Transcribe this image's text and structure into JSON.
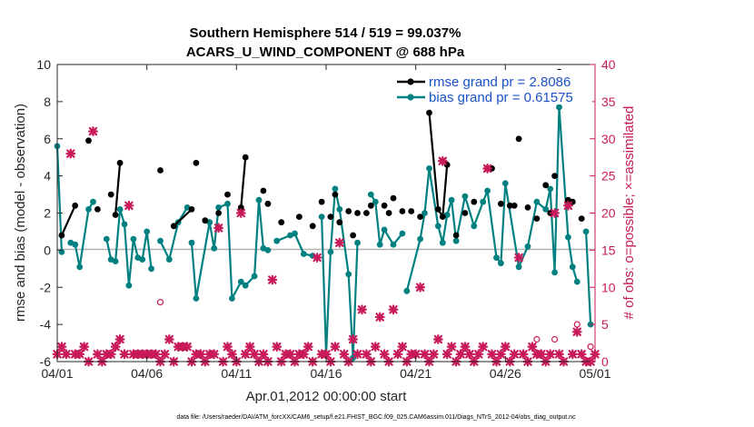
{
  "chart_data": {
    "type": "line",
    "title_line1": "Southern Hemisphere 514 / 519 = 99.037%",
    "title_line2": "ACARS_U_WIND_COMPONENT @ 688 hPa",
    "xlabel": "Apr.01,2012 00:00:00 start",
    "ylabel_left": "rmse and bias (model - observation)",
    "ylabel_right": "# of obs: o=possible; ×=assimilated",
    "footnote": "data file: /Users/raeder/DAI/ATM_forcXX/CAM6_setup/f.e21.FHIST_BGC.f09_025.CAM6assim.011/Diags_NTrS_2012-04/obs_diag_output.nc",
    "xlim": [
      0,
      30
    ],
    "ylim_left": [
      -6,
      10
    ],
    "ylim_right": [
      0,
      40
    ],
    "x_ticks": [
      0,
      5,
      10,
      15,
      20,
      25,
      30
    ],
    "x_tick_labels": [
      "04/01",
      "04/06",
      "04/11",
      "04/16",
      "04/21",
      "04/26",
      "05/01"
    ],
    "y_ticks_left": [
      "-6",
      "-4",
      "-2",
      "0",
      "2",
      "4",
      "6",
      "8",
      "10"
    ],
    "y_ticks_right": [
      "0",
      "5",
      "10",
      "15",
      "20",
      "25",
      "30",
      "35",
      "40"
    ],
    "grid": false,
    "legend_position": "top-right",
    "legend": {
      "rmse": "rmse grand pr = 2.8086",
      "bias": "bias grand pr = 0.61575"
    },
    "colors": {
      "rmse": "#000000",
      "bias": "#008080",
      "obs": "#c81a5a",
      "zero_line": "#b3b3b3"
    },
    "series": [
      {
        "name": "rmse grand pr = 2.8086",
        "key": "rmse",
        "points": [
          [
            0.25,
            0.8
          ],
          [
            1,
            2.4
          ],
          [
            1.75,
            5.9
          ],
          [
            2.25,
            2.2
          ],
          [
            3,
            3.0
          ],
          [
            3.25,
            1.9
          ],
          [
            3.5,
            4.7
          ],
          [
            5.75,
            4.3
          ],
          [
            6.5,
            1.3
          ],
          [
            7.5,
            2.2
          ],
          [
            7.75,
            4.7
          ],
          [
            8.25,
            1.6
          ],
          [
            9,
            2.0
          ],
          [
            9.5,
            3.0
          ],
          [
            10.25,
            2.3
          ],
          [
            10.5,
            5.0
          ],
          [
            11.5,
            3.2
          ],
          [
            11.75,
            2.5
          ],
          [
            12.5,
            1.5
          ],
          [
            13.5,
            1.8
          ],
          [
            14.25,
            1.3
          ],
          [
            14.75,
            2.6
          ],
          [
            15.25,
            1.8
          ],
          [
            15.5,
            3.0
          ],
          [
            15.75,
            1.5
          ],
          [
            16.25,
            2.1
          ],
          [
            16.5,
            0.8
          ],
          [
            16.75,
            2.0
          ],
          [
            17.25,
            2.0
          ],
          [
            17.5,
            2.4
          ],
          [
            18.25,
            2.4
          ],
          [
            18.5,
            2.0
          ],
          [
            18.75,
            2.8
          ],
          [
            19.25,
            2.1
          ],
          [
            19.75,
            2.1
          ],
          [
            20.25,
            1.8
          ],
          [
            20.75,
            7.4
          ],
          [
            21.25,
            2.2
          ],
          [
            21.5,
            1.8
          ],
          [
            21.75,
            4.6
          ],
          [
            22.25,
            0.8
          ],
          [
            22.75,
            2.0
          ],
          [
            23.25,
            2.6
          ],
          [
            24.25,
            4.4
          ],
          [
            24.75,
            2.5
          ],
          [
            25.25,
            2.4
          ],
          [
            25.5,
            2.4
          ],
          [
            25.75,
            6.0
          ],
          [
            26.25,
            2.3
          ],
          [
            26.75,
            1.7
          ],
          [
            27.25,
            3.5
          ],
          [
            27.5,
            2.0
          ],
          [
            27.75,
            4.0
          ],
          [
            28,
            9.6
          ],
          [
            28.5,
            2.7
          ],
          [
            28.75,
            2.6
          ],
          [
            29.25,
            1.7
          ]
        ],
        "segments": [
          [
            0,
            1
          ],
          [
            5,
            6
          ],
          [
            8,
            9
          ],
          [
            14,
            15
          ],
          [
            36,
            37
          ],
          [
            37,
            39
          ]
        ]
      },
      {
        "name": "bias grand pr = 0.61575",
        "key": "bias",
        "points": [
          [
            0,
            5.6
          ],
          [
            0.25,
            -0.1
          ],
          [
            0.75,
            0.4
          ],
          [
            1,
            0.3
          ],
          [
            1.25,
            -0.9
          ],
          [
            1.75,
            2.2
          ],
          [
            2,
            2.6
          ],
          [
            2.75,
            0.6
          ],
          [
            3,
            -0.5
          ],
          [
            3.25,
            -0.6
          ],
          [
            3.5,
            2.2
          ],
          [
            3.75,
            1.4
          ],
          [
            4,
            -1.9
          ],
          [
            4.25,
            0.6
          ],
          [
            4.5,
            -0.4
          ],
          [
            4.75,
            -0.5
          ],
          [
            5,
            1.0
          ],
          [
            5.25,
            -1.0
          ],
          [
            5.75,
            0.5
          ],
          [
            6.25,
            -0.5
          ],
          [
            6.75,
            1.5
          ],
          [
            7.25,
            2.3
          ],
          [
            7.5,
            0.4
          ],
          [
            7.75,
            -2.6
          ],
          [
            8.5,
            1.5
          ],
          [
            8.75,
            0.1
          ],
          [
            9,
            2.3
          ],
          [
            9.5,
            2.5
          ],
          [
            9.75,
            -2.6
          ],
          [
            10.25,
            -1.7
          ],
          [
            10.5,
            -1.9
          ],
          [
            11,
            -1.4
          ],
          [
            11.25,
            2.7
          ],
          [
            11.5,
            0.1
          ],
          [
            11.75,
            0.0
          ],
          [
            12.25,
            0.5
          ],
          [
            13,
            0.8
          ],
          [
            13.25,
            0.9
          ],
          [
            13.75,
            -0.2
          ],
          [
            14.25,
            -0.3
          ],
          [
            14.75,
            1.8
          ],
          [
            15,
            -5.6
          ],
          [
            15.25,
            -0.1
          ],
          [
            15.5,
            3.3
          ],
          [
            15.75,
            2.2
          ],
          [
            16.25,
            -1.3
          ],
          [
            16.5,
            -5.8
          ],
          [
            16.75,
            0.4
          ],
          [
            17.5,
            3.0
          ],
          [
            17.75,
            2.6
          ],
          [
            18,
            0.3
          ],
          [
            18.25,
            1.1
          ],
          [
            18.75,
            0.3
          ],
          [
            19.25,
            0.9
          ],
          [
            19.5,
            -2.2
          ],
          [
            20.25,
            0.6
          ],
          [
            20.5,
            2.0
          ],
          [
            20.75,
            4.4
          ],
          [
            21.25,
            1.3
          ],
          [
            21.5,
            0.4
          ],
          [
            21.75,
            1.9
          ],
          [
            22,
            2.7
          ],
          [
            22.25,
            0.5
          ],
          [
            22.75,
            2.9
          ],
          [
            23.25,
            1.3
          ],
          [
            23.75,
            2.6
          ],
          [
            24,
            3.2
          ],
          [
            24.5,
            -0.4
          ],
          [
            24.75,
            -0.7
          ],
          [
            25,
            3.6
          ],
          [
            25.75,
            -0.9
          ],
          [
            26.25,
            0.2
          ],
          [
            26.75,
            2.6
          ],
          [
            27.25,
            2.2
          ],
          [
            27.5,
            3.3
          ],
          [
            27.75,
            -1.2
          ],
          [
            28,
            7.7
          ],
          [
            28.5,
            0.7
          ],
          [
            28.75,
            -0.9
          ],
          [
            29,
            -1.7
          ],
          [
            29.5,
            1.0
          ],
          [
            29.75,
            -4.0
          ]
        ],
        "segments": [
          [
            0,
            1
          ],
          [
            0,
            0
          ],
          [
            2,
            4
          ],
          [
            4,
            6
          ],
          [
            7,
            11
          ],
          [
            11,
            13
          ],
          [
            13,
            17
          ],
          [
            18,
            19
          ],
          [
            19,
            21
          ],
          [
            22,
            24
          ],
          [
            24,
            26
          ],
          [
            26,
            31
          ],
          [
            31,
            34
          ],
          [
            35,
            38
          ],
          [
            38,
            39
          ],
          [
            40,
            43
          ],
          [
            43,
            44
          ],
          [
            44,
            47
          ],
          [
            48,
            51
          ],
          [
            51,
            53
          ],
          [
            54,
            55
          ],
          [
            55,
            57
          ],
          [
            57,
            60
          ],
          [
            60,
            62
          ],
          [
            62,
            65
          ],
          [
            65,
            67
          ],
          [
            67,
            69
          ],
          [
            69,
            71
          ],
          [
            71,
            74
          ],
          [
            74,
            76
          ],
          [
            76,
            78
          ],
          [
            78,
            79
          ],
          [
            80,
            81
          ]
        ]
      },
      {
        "name": "obs assimilated",
        "key": "obs_assimilated",
        "y_axis": "right",
        "points": [
          [
            0,
            1
          ],
          [
            0.25,
            2
          ],
          [
            0.5,
            1
          ],
          [
            0.75,
            28
          ],
          [
            1,
            1
          ],
          [
            1.25,
            1
          ],
          [
            1.5,
            2
          ],
          [
            1.75,
            0
          ],
          [
            2,
            31
          ],
          [
            2.25,
            1
          ],
          [
            2.5,
            0
          ],
          [
            2.75,
            1
          ],
          [
            3,
            1
          ],
          [
            3.25,
            2
          ],
          [
            3.5,
            3
          ],
          [
            3.75,
            1
          ],
          [
            4,
            21
          ],
          [
            4.25,
            1
          ],
          [
            4.5,
            1
          ],
          [
            4.75,
            1
          ],
          [
            5,
            1
          ],
          [
            5.25,
            1
          ],
          [
            5.5,
            1
          ],
          [
            5.75,
            0
          ],
          [
            6,
            1
          ],
          [
            6.25,
            3
          ],
          [
            6.5,
            0
          ],
          [
            6.75,
            2
          ],
          [
            7,
            2
          ],
          [
            7.25,
            2
          ],
          [
            7.5,
            0
          ],
          [
            7.75,
            1
          ],
          [
            8,
            1
          ],
          [
            8.25,
            0
          ],
          [
            8.5,
            1
          ],
          [
            8.75,
            1
          ],
          [
            9,
            18
          ],
          [
            9.25,
            0
          ],
          [
            9.5,
            2
          ],
          [
            9.75,
            1
          ],
          [
            10,
            0
          ],
          [
            10.25,
            20
          ],
          [
            10.5,
            1
          ],
          [
            10.75,
            2
          ],
          [
            11,
            1
          ],
          [
            11.25,
            0
          ],
          [
            11.5,
            1
          ],
          [
            11.75,
            0
          ],
          [
            12,
            11
          ],
          [
            12.25,
            2
          ],
          [
            12.5,
            0
          ],
          [
            12.75,
            1
          ],
          [
            13,
            1
          ],
          [
            13.25,
            0
          ],
          [
            13.5,
            1
          ],
          [
            13.75,
            1
          ],
          [
            14,
            2
          ],
          [
            14.25,
            0
          ],
          [
            14.5,
            14
          ],
          [
            14.75,
            1
          ],
          [
            15,
            1
          ],
          [
            15.25,
            0
          ],
          [
            15.5,
            2
          ],
          [
            15.75,
            16
          ],
          [
            16,
            1
          ],
          [
            16.25,
            0
          ],
          [
            16.5,
            3
          ],
          [
            16.75,
            1
          ],
          [
            17,
            7
          ],
          [
            17.25,
            1
          ],
          [
            17.5,
            0
          ],
          [
            17.75,
            2
          ],
          [
            18,
            6
          ],
          [
            18.25,
            1
          ],
          [
            18.5,
            0
          ],
          [
            18.75,
            7
          ],
          [
            19,
            1
          ],
          [
            19.25,
            2
          ],
          [
            19.5,
            0
          ],
          [
            19.75,
            1
          ],
          [
            20,
            1
          ],
          [
            20.25,
            10
          ],
          [
            20.5,
            1
          ],
          [
            20.75,
            0
          ],
          [
            21,
            1
          ],
          [
            21.25,
            3
          ],
          [
            21.5,
            27
          ],
          [
            21.75,
            1
          ],
          [
            22,
            2
          ],
          [
            22.25,
            0
          ],
          [
            22.5,
            1
          ],
          [
            22.75,
            2
          ],
          [
            23,
            1
          ],
          [
            23.25,
            0
          ],
          [
            23.5,
            1
          ],
          [
            23.75,
            2
          ],
          [
            24,
            26
          ],
          [
            24.25,
            1
          ],
          [
            24.5,
            0
          ],
          [
            24.75,
            1
          ],
          [
            25,
            2
          ],
          [
            25.25,
            0
          ],
          [
            25.5,
            1
          ],
          [
            25.75,
            14
          ],
          [
            26,
            1
          ],
          [
            26.25,
            0
          ],
          [
            26.5,
            2
          ],
          [
            26.75,
            1
          ],
          [
            27,
            1
          ],
          [
            27.25,
            0
          ],
          [
            27.5,
            1
          ],
          [
            27.75,
            20
          ],
          [
            28,
            1
          ],
          [
            28.25,
            0
          ],
          [
            28.5,
            21
          ],
          [
            28.75,
            1
          ],
          [
            29,
            4
          ],
          [
            29.25,
            1
          ],
          [
            29.5,
            0
          ],
          [
            29.75,
            0
          ],
          [
            30,
            1
          ]
        ]
      },
      {
        "name": "obs possible",
        "key": "obs_possible",
        "y_axis": "right",
        "points": [
          [
            5.75,
            8
          ],
          [
            9,
            18
          ],
          [
            21.5,
            27
          ],
          [
            24,
            26
          ],
          [
            26.75,
            3
          ],
          [
            27.75,
            3
          ],
          [
            29,
            5
          ],
          [
            29.75,
            2
          ]
        ]
      }
    ]
  }
}
